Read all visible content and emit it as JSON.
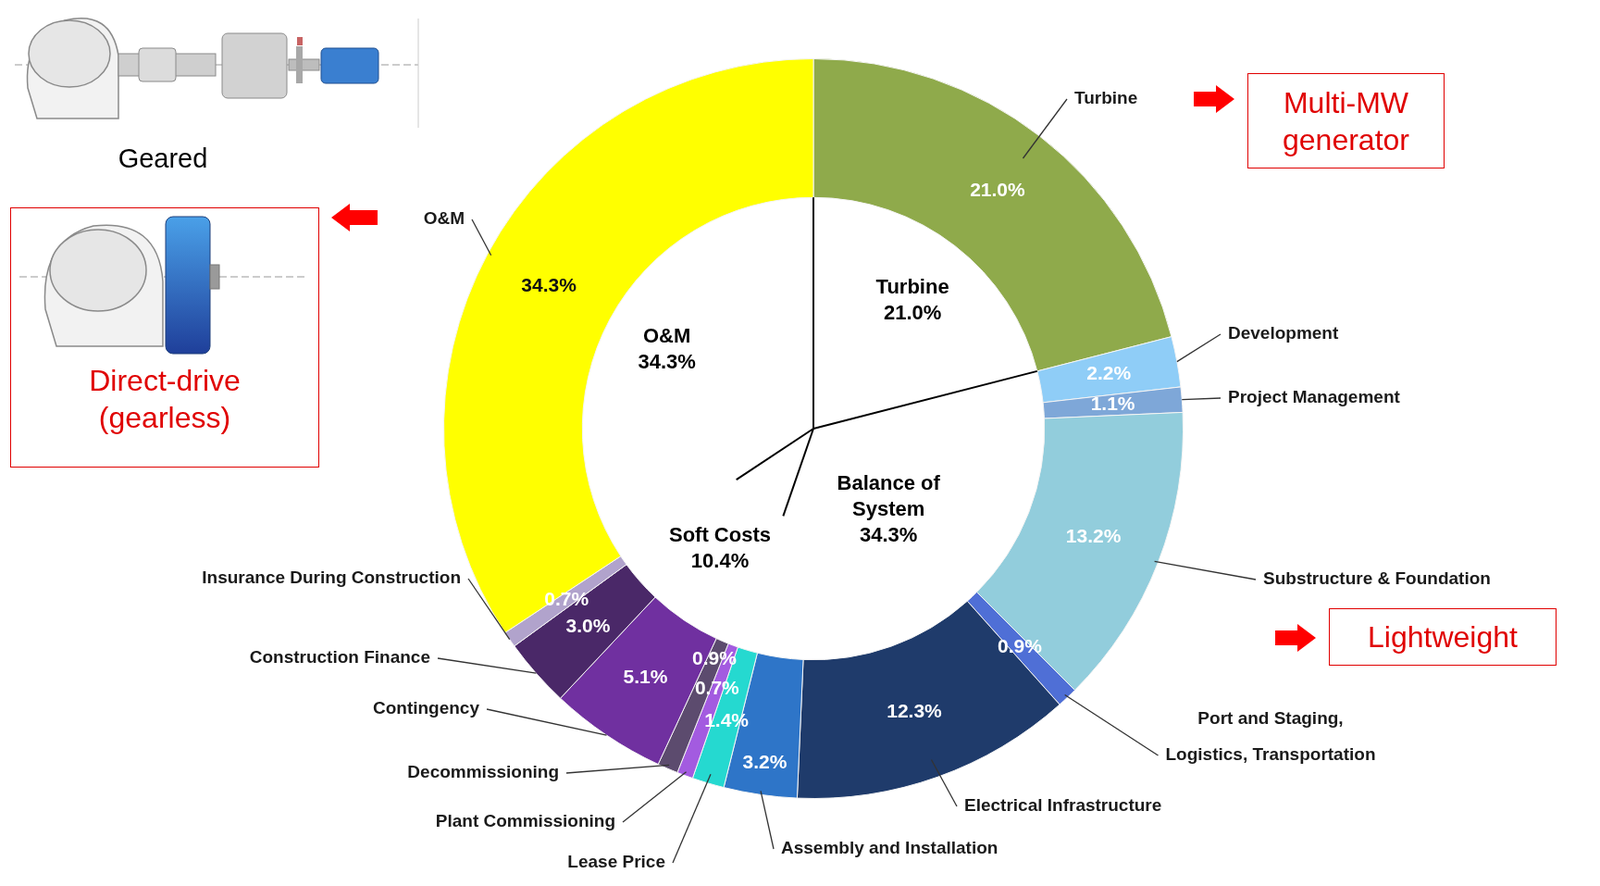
{
  "chart_data": {
    "type": "doughnut",
    "categories": [
      "Turbine",
      "Development",
      "Project Management",
      "Substructure & Foundation",
      "Port and Staging, Logistics, Transportation",
      "Electrical Infrastructure",
      "Assembly and Installation",
      "Lease Price",
      "Plant Commissioning",
      "Decommissioning",
      "Contingency",
      "Construction Finance",
      "Insurance During Construction",
      "O&M"
    ],
    "values": [
      21.0,
      2.2,
      1.1,
      13.2,
      0.9,
      12.3,
      3.2,
      1.4,
      0.7,
      0.9,
      5.1,
      3.0,
      0.7,
      34.3
    ],
    "value_labels": [
      "21.0%",
      "2.2%",
      "1.1%",
      "13.2%",
      "0.9%",
      "12.3%",
      "3.2%",
      "1.4%",
      "0.7%",
      "0.9%",
      "5.1%",
      "3.0%",
      "0.7%",
      "34.3%"
    ],
    "colors": [
      "#8faa4b",
      "#8fcdf7",
      "#7ea7d8",
      "#92cddc",
      "#4f6fd6",
      "#1f3b6b",
      "#2e75c8",
      "#25d9d0",
      "#a35be0",
      "#5c4b6e",
      "#7030a0",
      "#4a2868",
      "#b1a3cc",
      "#ffff00"
    ],
    "data_labels": true,
    "inner": {
      "type": "pie",
      "categories": [
        "Turbine",
        "Balance of System",
        "Soft Costs",
        "O&M"
      ],
      "values": [
        21.0,
        34.3,
        10.4,
        34.3
      ],
      "value_labels": [
        "21.0%",
        "34.3%",
        "10.4%",
        "34.3%"
      ],
      "colors": [
        "#ffffff",
        "#ffffff",
        "#ffffff",
        "#ffffff"
      ],
      "data_labels": true
    },
    "annotations": [
      {
        "text": "Multi-MW generator",
        "target": "Turbine"
      },
      {
        "text": "Lightweight",
        "target": "Substructure & Foundation"
      },
      {
        "text": "Direct-drive (gearless)",
        "target": "O&M"
      },
      {
        "text": "Geared"
      }
    ]
  }
}
